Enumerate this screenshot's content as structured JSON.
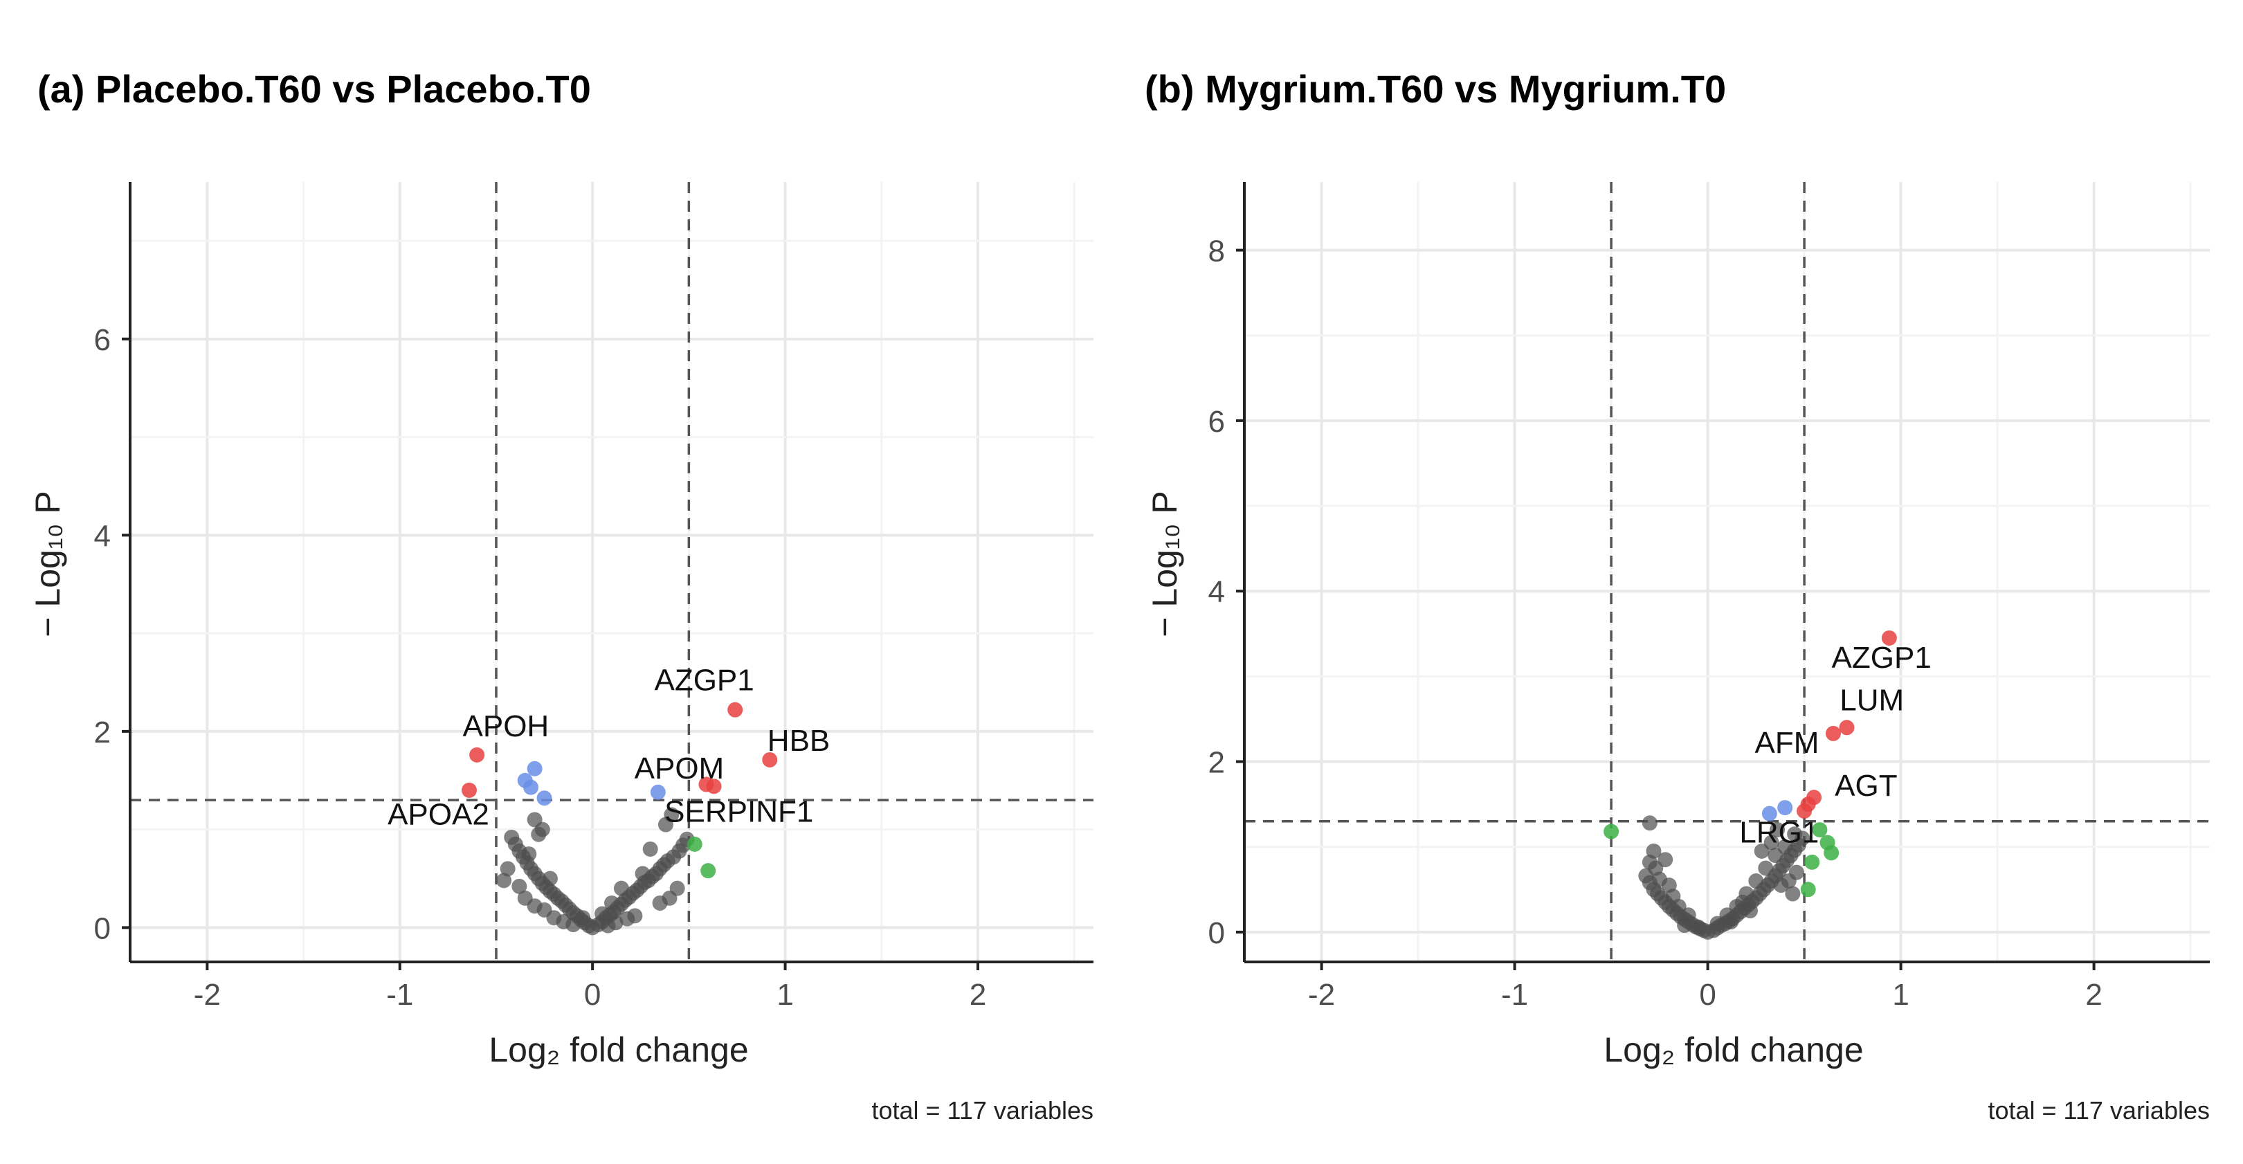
{
  "chart_data": [
    {
      "type": "scatter",
      "title": "(a) Placebo.T60 vs Placebo.T0",
      "xlabel": "Log₂ fold change",
      "ylabel": "− Log₁₀ P",
      "xlim": [
        -2.4,
        2.6
      ],
      "ylim": [
        -0.35,
        7.6
      ],
      "xticks": [
        -2,
        -1,
        0,
        1,
        2
      ],
      "xtick_labels": [
        "-2",
        "-1",
        "0",
        "1",
        "2"
      ],
      "yticks": [
        0,
        2,
        4,
        6
      ],
      "ytick_labels": [
        "0",
        "2",
        "4",
        "6"
      ],
      "grid": true,
      "thresholds": {
        "fc": [
          -0.5,
          0.5
        ],
        "p": 1.3
      },
      "caption": "total = 117 variables",
      "colors": {
        "ns": "#4d4d4d",
        "log2fc": "#3cb044",
        "p": "#6a8ee8",
        "p_and_log2fc": "#e8413f"
      },
      "points": [
        {
          "x": 0.0,
          "y": 0.0,
          "c": "ns"
        },
        {
          "x": -0.02,
          "y": 0.02,
          "c": "ns"
        },
        {
          "x": 0.03,
          "y": 0.03,
          "c": "ns"
        },
        {
          "x": -0.04,
          "y": 0.05,
          "c": "ns"
        },
        {
          "x": 0.05,
          "y": 0.06,
          "c": "ns"
        },
        {
          "x": -0.06,
          "y": 0.08,
          "c": "ns"
        },
        {
          "x": 0.07,
          "y": 0.1,
          "c": "ns"
        },
        {
          "x": -0.08,
          "y": 0.12,
          "c": "ns"
        },
        {
          "x": 0.09,
          "y": 0.13,
          "c": "ns"
        },
        {
          "x": -0.1,
          "y": 0.15,
          "c": "ns"
        },
        {
          "x": 0.11,
          "y": 0.16,
          "c": "ns"
        },
        {
          "x": -0.12,
          "y": 0.19,
          "c": "ns"
        },
        {
          "x": 0.13,
          "y": 0.2,
          "c": "ns"
        },
        {
          "x": -0.14,
          "y": 0.23,
          "c": "ns"
        },
        {
          "x": 0.15,
          "y": 0.24,
          "c": "ns"
        },
        {
          "x": -0.16,
          "y": 0.27,
          "c": "ns"
        },
        {
          "x": 0.17,
          "y": 0.28,
          "c": "ns"
        },
        {
          "x": -0.18,
          "y": 0.3,
          "c": "ns"
        },
        {
          "x": 0.19,
          "y": 0.31,
          "c": "ns"
        },
        {
          "x": -0.2,
          "y": 0.34,
          "c": "ns"
        },
        {
          "x": 0.21,
          "y": 0.35,
          "c": "ns"
        },
        {
          "x": -0.22,
          "y": 0.37,
          "c": "ns"
        },
        {
          "x": 0.23,
          "y": 0.38,
          "c": "ns"
        },
        {
          "x": -0.24,
          "y": 0.41,
          "c": "ns"
        },
        {
          "x": 0.25,
          "y": 0.42,
          "c": "ns"
        },
        {
          "x": -0.26,
          "y": 0.45,
          "c": "ns"
        },
        {
          "x": 0.27,
          "y": 0.46,
          "c": "ns"
        },
        {
          "x": -0.28,
          "y": 0.5,
          "c": "ns"
        },
        {
          "x": 0.29,
          "y": 0.48,
          "c": "ns"
        },
        {
          "x": -0.3,
          "y": 0.55,
          "c": "ns"
        },
        {
          "x": 0.31,
          "y": 0.52,
          "c": "ns"
        },
        {
          "x": -0.32,
          "y": 0.6,
          "c": "ns"
        },
        {
          "x": 0.33,
          "y": 0.55,
          "c": "ns"
        },
        {
          "x": -0.34,
          "y": 0.66,
          "c": "ns"
        },
        {
          "x": 0.35,
          "y": 0.6,
          "c": "ns"
        },
        {
          "x": -0.36,
          "y": 0.72,
          "c": "ns"
        },
        {
          "x": 0.37,
          "y": 0.64,
          "c": "ns"
        },
        {
          "x": -0.38,
          "y": 0.78,
          "c": "ns"
        },
        {
          "x": 0.39,
          "y": 0.68,
          "c": "ns"
        },
        {
          "x": -0.4,
          "y": 0.85,
          "c": "ns"
        },
        {
          "x": 0.42,
          "y": 0.72,
          "c": "ns"
        },
        {
          "x": -0.42,
          "y": 0.92,
          "c": "ns"
        },
        {
          "x": 0.45,
          "y": 0.78,
          "c": "ns"
        },
        {
          "x": -0.44,
          "y": 0.6,
          "c": "ns"
        },
        {
          "x": 0.47,
          "y": 0.84,
          "c": "ns"
        },
        {
          "x": -0.46,
          "y": 0.48,
          "c": "ns"
        },
        {
          "x": 0.49,
          "y": 0.9,
          "c": "ns"
        },
        {
          "x": -0.35,
          "y": 0.3,
          "c": "ns"
        },
        {
          "x": 0.4,
          "y": 0.3,
          "c": "ns"
        },
        {
          "x": -0.25,
          "y": 0.18,
          "c": "ns"
        },
        {
          "x": 0.22,
          "y": 0.12,
          "c": "ns"
        },
        {
          "x": -0.15,
          "y": 0.06,
          "c": "ns"
        },
        {
          "x": 0.12,
          "y": 0.05,
          "c": "ns"
        },
        {
          "x": -0.3,
          "y": 0.22,
          "c": "ns"
        },
        {
          "x": 0.35,
          "y": 0.25,
          "c": "ns"
        },
        {
          "x": -0.2,
          "y": 0.1,
          "c": "ns"
        },
        {
          "x": 0.18,
          "y": 0.09,
          "c": "ns"
        },
        {
          "x": -0.38,
          "y": 0.42,
          "c": "ns"
        },
        {
          "x": 0.44,
          "y": 0.4,
          "c": "ns"
        },
        {
          "x": -0.1,
          "y": 0.03,
          "c": "ns"
        },
        {
          "x": 0.08,
          "y": 0.02,
          "c": "ns"
        },
        {
          "x": -0.28,
          "y": 0.95,
          "c": "ns"
        },
        {
          "x": -0.3,
          "y": 1.1,
          "c": "ns"
        },
        {
          "x": -0.26,
          "y": 1.0,
          "c": "ns"
        },
        {
          "x": 0.38,
          "y": 1.05,
          "c": "ns"
        },
        {
          "x": 0.41,
          "y": 1.15,
          "c": "ns"
        },
        {
          "x": -0.33,
          "y": 0.75,
          "c": "ns"
        },
        {
          "x": 0.3,
          "y": 0.8,
          "c": "ns"
        },
        {
          "x": -0.22,
          "y": 0.5,
          "c": "ns"
        },
        {
          "x": 0.26,
          "y": 0.55,
          "c": "ns"
        },
        {
          "x": 0.15,
          "y": 0.4,
          "c": "ns"
        },
        {
          "x": 0.1,
          "y": 0.25,
          "c": "ns"
        },
        {
          "x": -0.05,
          "y": 0.1,
          "c": "ns"
        },
        {
          "x": 0.05,
          "y": 0.14,
          "c": "ns"
        },
        {
          "x": -0.35,
          "y": 1.5,
          "c": "p"
        },
        {
          "x": -0.3,
          "y": 1.62,
          "c": "p"
        },
        {
          "x": -0.25,
          "y": 1.32,
          "c": "p"
        },
        {
          "x": 0.34,
          "y": 1.38,
          "c": "p"
        },
        {
          "x": -0.32,
          "y": 1.43,
          "c": "p"
        },
        {
          "x": 0.53,
          "y": 0.85,
          "c": "log2fc"
        },
        {
          "x": 0.6,
          "y": 0.58,
          "c": "log2fc"
        },
        {
          "x": -0.6,
          "y": 1.76,
          "c": "p_and_log2fc"
        },
        {
          "x": -0.64,
          "y": 1.4,
          "c": "p_and_log2fc"
        },
        {
          "x": 0.74,
          "y": 2.22,
          "c": "p_and_log2fc"
        },
        {
          "x": 0.92,
          "y": 1.71,
          "c": "p_and_log2fc"
        },
        {
          "x": 0.59,
          "y": 1.46,
          "c": "p_and_log2fc"
        },
        {
          "x": 0.63,
          "y": 1.44,
          "c": "p_and_log2fc"
        }
      ],
      "labels": [
        {
          "text": "APOH",
          "x": -0.45,
          "y": 1.95
        },
        {
          "text": "APOA2",
          "x": -0.8,
          "y": 1.05
        },
        {
          "text": "AZGP1",
          "x": 0.58,
          "y": 2.42
        },
        {
          "text": "HBB",
          "x": 1.07,
          "y": 1.8
        },
        {
          "text": "APOM",
          "x": 0.45,
          "y": 1.52
        },
        {
          "text": "SERPINF1",
          "x": 0.76,
          "y": 1.08
        }
      ]
    },
    {
      "type": "scatter",
      "title": "(b) Mygrium.T60 vs Mygrium.T0",
      "xlabel": "Log₂ fold change",
      "ylabel": "− Log₁₀ P",
      "xlim": [
        -2.4,
        2.6
      ],
      "ylim": [
        -0.35,
        8.8
      ],
      "xticks": [
        -2,
        -1,
        0,
        1,
        2
      ],
      "xtick_labels": [
        "-2",
        "-1",
        "0",
        "1",
        "2"
      ],
      "yticks": [
        0,
        2,
        4,
        6,
        8
      ],
      "ytick_labels": [
        "0",
        "2",
        "4",
        "6",
        "8"
      ],
      "grid": true,
      "thresholds": {
        "fc": [
          -0.5,
          0.5
        ],
        "p": 1.3
      },
      "caption": "total = 117 variables",
      "colors": {
        "ns": "#4d4d4d",
        "log2fc": "#3cb044",
        "p": "#6a8ee8",
        "p_and_log2fc": "#e8413f"
      },
      "points": [
        {
          "x": 0.0,
          "y": 0.0,
          "c": "ns"
        },
        {
          "x": -0.02,
          "y": 0.02,
          "c": "ns"
        },
        {
          "x": 0.03,
          "y": 0.02,
          "c": "ns"
        },
        {
          "x": -0.04,
          "y": 0.04,
          "c": "ns"
        },
        {
          "x": 0.05,
          "y": 0.05,
          "c": "ns"
        },
        {
          "x": -0.06,
          "y": 0.06,
          "c": "ns"
        },
        {
          "x": 0.07,
          "y": 0.08,
          "c": "ns"
        },
        {
          "x": -0.08,
          "y": 0.09,
          "c": "ns"
        },
        {
          "x": 0.09,
          "y": 0.1,
          "c": "ns"
        },
        {
          "x": -0.1,
          "y": 0.12,
          "c": "ns"
        },
        {
          "x": 0.11,
          "y": 0.13,
          "c": "ns"
        },
        {
          "x": -0.12,
          "y": 0.15,
          "c": "ns"
        },
        {
          "x": 0.13,
          "y": 0.16,
          "c": "ns"
        },
        {
          "x": -0.14,
          "y": 0.18,
          "c": "ns"
        },
        {
          "x": 0.15,
          "y": 0.2,
          "c": "ns"
        },
        {
          "x": -0.16,
          "y": 0.22,
          "c": "ns"
        },
        {
          "x": 0.17,
          "y": 0.24,
          "c": "ns"
        },
        {
          "x": -0.18,
          "y": 0.26,
          "c": "ns"
        },
        {
          "x": 0.19,
          "y": 0.28,
          "c": "ns"
        },
        {
          "x": -0.2,
          "y": 0.3,
          "c": "ns"
        },
        {
          "x": 0.21,
          "y": 0.32,
          "c": "ns"
        },
        {
          "x": -0.22,
          "y": 0.35,
          "c": "ns"
        },
        {
          "x": 0.23,
          "y": 0.36,
          "c": "ns"
        },
        {
          "x": -0.24,
          "y": 0.4,
          "c": "ns"
        },
        {
          "x": 0.25,
          "y": 0.4,
          "c": "ns"
        },
        {
          "x": -0.26,
          "y": 0.45,
          "c": "ns"
        },
        {
          "x": 0.27,
          "y": 0.45,
          "c": "ns"
        },
        {
          "x": -0.28,
          "y": 0.5,
          "c": "ns"
        },
        {
          "x": 0.29,
          "y": 0.5,
          "c": "ns"
        },
        {
          "x": -0.3,
          "y": 0.58,
          "c": "ns"
        },
        {
          "x": 0.31,
          "y": 0.55,
          "c": "ns"
        },
        {
          "x": -0.32,
          "y": 0.66,
          "c": "ns"
        },
        {
          "x": 0.33,
          "y": 0.6,
          "c": "ns"
        },
        {
          "x": -0.27,
          "y": 0.75,
          "c": "ns"
        },
        {
          "x": 0.35,
          "y": 0.66,
          "c": "ns"
        },
        {
          "x": -0.3,
          "y": 0.82,
          "c": "ns"
        },
        {
          "x": 0.37,
          "y": 0.72,
          "c": "ns"
        },
        {
          "x": -0.25,
          "y": 0.62,
          "c": "ns"
        },
        {
          "x": 0.39,
          "y": 0.78,
          "c": "ns"
        },
        {
          "x": -0.2,
          "y": 0.55,
          "c": "ns"
        },
        {
          "x": 0.41,
          "y": 0.84,
          "c": "ns"
        },
        {
          "x": -0.3,
          "y": 1.28,
          "c": "ns"
        },
        {
          "x": 0.43,
          "y": 0.9,
          "c": "ns"
        },
        {
          "x": -0.18,
          "y": 0.42,
          "c": "ns"
        },
        {
          "x": 0.45,
          "y": 0.96,
          "c": "ns"
        },
        {
          "x": -0.15,
          "y": 0.3,
          "c": "ns"
        },
        {
          "x": 0.47,
          "y": 1.02,
          "c": "ns"
        },
        {
          "x": -0.1,
          "y": 0.2,
          "c": "ns"
        },
        {
          "x": 0.49,
          "y": 1.1,
          "c": "ns"
        },
        {
          "x": 0.2,
          "y": 0.45,
          "c": "ns"
        },
        {
          "x": 0.25,
          "y": 0.6,
          "c": "ns"
        },
        {
          "x": 0.3,
          "y": 0.75,
          "c": "ns"
        },
        {
          "x": 0.35,
          "y": 0.9,
          "c": "ns"
        },
        {
          "x": 0.4,
          "y": 1.0,
          "c": "ns"
        },
        {
          "x": 0.45,
          "y": 1.15,
          "c": "ns"
        },
        {
          "x": 0.15,
          "y": 0.3,
          "c": "ns"
        },
        {
          "x": 0.1,
          "y": 0.2,
          "c": "ns"
        },
        {
          "x": 0.28,
          "y": 0.95,
          "c": "ns"
        },
        {
          "x": 0.33,
          "y": 1.05,
          "c": "ns"
        },
        {
          "x": 0.38,
          "y": 0.55,
          "c": "ns"
        },
        {
          "x": 0.42,
          "y": 0.6,
          "c": "ns"
        },
        {
          "x": 0.46,
          "y": 0.7,
          "c": "ns"
        },
        {
          "x": -0.05,
          "y": 0.06,
          "c": "ns"
        },
        {
          "x": 0.05,
          "y": 0.1,
          "c": "ns"
        },
        {
          "x": -0.22,
          "y": 0.85,
          "c": "ns"
        },
        {
          "x": -0.28,
          "y": 0.95,
          "c": "ns"
        },
        {
          "x": 0.22,
          "y": 0.25,
          "c": "ns"
        },
        {
          "x": 0.18,
          "y": 0.35,
          "c": "ns"
        },
        {
          "x": -0.12,
          "y": 0.08,
          "c": "ns"
        },
        {
          "x": 0.12,
          "y": 0.12,
          "c": "ns"
        },
        {
          "x": 0.36,
          "y": 1.2,
          "c": "ns"
        },
        {
          "x": 0.44,
          "y": 0.45,
          "c": "ns"
        },
        {
          "x": 0.32,
          "y": 1.39,
          "c": "p"
        },
        {
          "x": 0.4,
          "y": 1.46,
          "c": "p"
        },
        {
          "x": -0.5,
          "y": 1.18,
          "c": "log2fc"
        },
        {
          "x": 0.52,
          "y": 0.5,
          "c": "log2fc"
        },
        {
          "x": 0.54,
          "y": 0.82,
          "c": "log2fc"
        },
        {
          "x": 0.58,
          "y": 1.2,
          "c": "log2fc"
        },
        {
          "x": 0.62,
          "y": 1.05,
          "c": "log2fc"
        },
        {
          "x": 0.64,
          "y": 0.93,
          "c": "log2fc"
        },
        {
          "x": 0.94,
          "y": 3.45,
          "c": "p_and_log2fc"
        },
        {
          "x": 0.72,
          "y": 2.4,
          "c": "p_and_log2fc"
        },
        {
          "x": 0.65,
          "y": 2.33,
          "c": "p_and_log2fc"
        },
        {
          "x": 0.55,
          "y": 1.58,
          "c": "p_and_log2fc"
        },
        {
          "x": 0.5,
          "y": 1.42,
          "c": "p_and_log2fc"
        },
        {
          "x": 0.52,
          "y": 1.5,
          "c": "p_and_log2fc"
        }
      ],
      "labels": [
        {
          "text": "AZGP1",
          "x": 0.9,
          "y": 3.1
        },
        {
          "text": "LUM",
          "x": 0.85,
          "y": 2.6
        },
        {
          "text": "AFM",
          "x": 0.41,
          "y": 2.1
        },
        {
          "text": "AGT",
          "x": 0.82,
          "y": 1.6
        },
        {
          "text": "LRG1",
          "x": 0.37,
          "y": 1.05
        }
      ]
    }
  ]
}
